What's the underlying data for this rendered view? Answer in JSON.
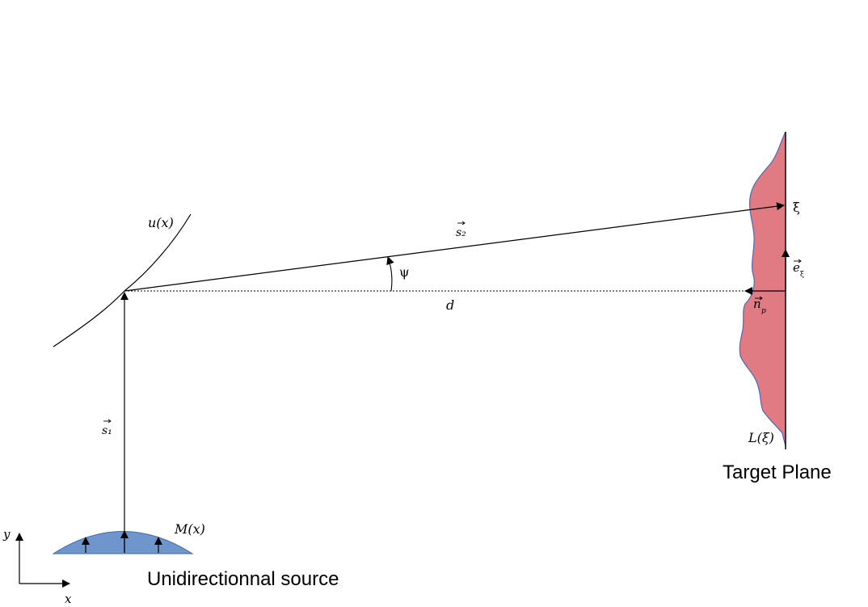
{
  "colors": {
    "source_fill": "#6f96cc",
    "source_stroke": "#3f6aa8",
    "target_fill": "#e07b84",
    "target_stroke": "#4b6ab0",
    "line": "#000000"
  },
  "labels": {
    "surface": "u(x)",
    "s2": "s₂",
    "s1": "s₁",
    "psi": "ψ",
    "distance": "d",
    "xi": "ξ",
    "e_xi": "e",
    "e_xi_sub": "ξ",
    "n_p": "n",
    "n_p_sub": "p",
    "luminance": "L(ξ)",
    "source_distribution": "M(x)",
    "axis_y": "y",
    "axis_x": "x",
    "target_caption": "Target Plane",
    "source_caption": "Unidirectionnal source"
  }
}
